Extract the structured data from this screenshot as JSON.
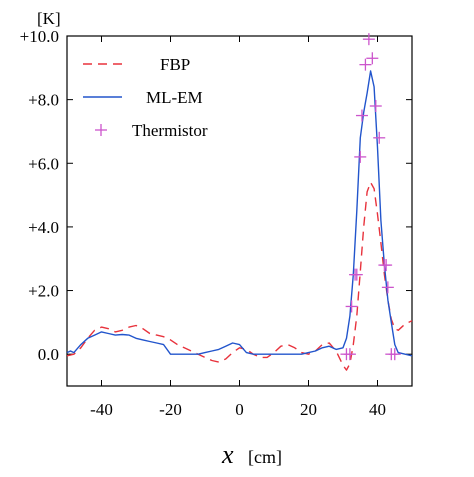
{
  "chart_data": {
    "type": "line",
    "y_unit_label": "[K]",
    "xlabel_var": "x",
    "xlabel_unit": "[cm]",
    "xlim": [
      -50,
      50
    ],
    "ylim": [
      -1.0,
      10.0
    ],
    "x_ticks": [
      -40,
      -20,
      0,
      20,
      40
    ],
    "x_tick_labels": [
      "-40",
      "-20",
      "0",
      "20",
      "40"
    ],
    "y_ticks": [
      0,
      2,
      4,
      6,
      8,
      10
    ],
    "y_tick_labels": [
      "0.0",
      "+2.0",
      "+4.0",
      "+6.0",
      "+8.0",
      "+10.0"
    ],
    "grid": false,
    "legend_position": "top-left",
    "series": [
      {
        "name": "FBP",
        "style": "dashed",
        "color": "#e8323c",
        "x": [
          -50,
          -48,
          -46,
          -44,
          -42,
          -40,
          -38,
          -36,
          -34,
          -32,
          -30,
          -28,
          -26,
          -24,
          -22,
          -20,
          -18,
          -16,
          -14,
          -12,
          -10,
          -8,
          -6,
          -4,
          -2,
          0,
          2,
          4,
          6,
          8,
          10,
          12,
          14,
          16,
          18,
          20,
          22,
          24,
          26,
          28,
          30,
          31,
          32,
          33,
          34,
          35,
          36,
          37,
          38,
          39,
          40,
          41,
          42,
          43,
          44,
          45,
          46,
          48,
          50
        ],
        "y": [
          -0.05,
          0.0,
          0.2,
          0.5,
          0.75,
          0.85,
          0.8,
          0.7,
          0.75,
          0.85,
          0.9,
          0.8,
          0.65,
          0.6,
          0.55,
          0.45,
          0.3,
          0.2,
          0.1,
          0.0,
          -0.1,
          -0.2,
          -0.25,
          -0.15,
          0.05,
          0.2,
          0.15,
          0.0,
          -0.1,
          -0.1,
          0.05,
          0.25,
          0.3,
          0.2,
          0.05,
          0.0,
          0.1,
          0.3,
          0.35,
          0.1,
          -0.35,
          -0.5,
          -0.3,
          0.3,
          1.2,
          2.6,
          4.0,
          5.1,
          5.4,
          5.2,
          4.4,
          3.5,
          2.5,
          1.7,
          1.1,
          0.8,
          0.75,
          0.95,
          1.05
        ]
      },
      {
        "name": "ML-EM",
        "style": "solid",
        "color": "#2255cc",
        "x": [
          -50,
          -49,
          -48,
          -46,
          -44,
          -42,
          -40,
          -38,
          -36,
          -34,
          -32,
          -30,
          -28,
          -26,
          -24,
          -22,
          -20,
          -18,
          -16,
          -14,
          -12,
          -10,
          -8,
          -6,
          -4,
          -2,
          0,
          2,
          4,
          6,
          8,
          10,
          12,
          14,
          16,
          18,
          20,
          22,
          24,
          26,
          28,
          30,
          31,
          32,
          33,
          34,
          35,
          36,
          37,
          38,
          39,
          40,
          41,
          42,
          43,
          44,
          45,
          46,
          48,
          50
        ],
        "y": [
          0.05,
          0.1,
          0.05,
          0.3,
          0.5,
          0.6,
          0.7,
          0.65,
          0.6,
          0.62,
          0.6,
          0.5,
          0.45,
          0.4,
          0.35,
          0.3,
          0.0,
          0.0,
          0.0,
          0.0,
          0.0,
          0.05,
          0.1,
          0.15,
          0.25,
          0.35,
          0.3,
          0.05,
          0.0,
          0.0,
          0.0,
          0.0,
          0.0,
          0.0,
          0.0,
          0.0,
          0.05,
          0.1,
          0.2,
          0.25,
          0.15,
          0.2,
          0.5,
          1.2,
          2.5,
          4.5,
          6.8,
          7.6,
          8.2,
          8.9,
          8.4,
          6.5,
          4.2,
          2.8,
          1.7,
          1.0,
          0.3,
          0.05,
          0.0,
          -0.05
        ]
      },
      {
        "name": "Thermistor",
        "style": "markers",
        "color": "#cc55cc",
        "x": [
          31.0,
          32.0,
          32.5,
          33.5,
          34.0,
          35.0,
          35.5,
          36.5,
          37.5,
          38.5,
          39.5,
          40.5,
          42.0,
          42.5,
          43.0,
          44.0,
          45.0
        ],
        "y": [
          0.0,
          0.0,
          1.5,
          2.5,
          2.5,
          6.2,
          7.5,
          9.1,
          9.9,
          9.3,
          7.8,
          6.8,
          2.8,
          2.8,
          2.1,
          0.0,
          0.0
        ]
      }
    ]
  }
}
